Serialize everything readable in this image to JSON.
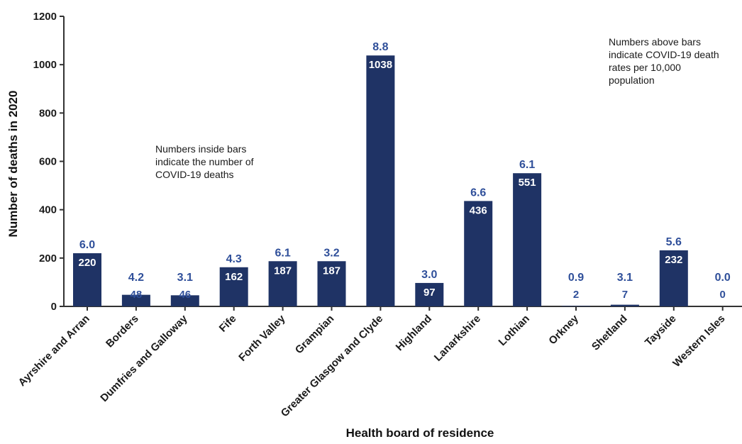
{
  "chart_data": {
    "type": "bar",
    "title": "",
    "xlabel": "Health board of residence",
    "ylabel": "Number of deaths in 2020",
    "ylim": [
      0,
      1200
    ],
    "yticks": [
      0,
      200,
      400,
      600,
      800,
      1000,
      1200
    ],
    "categories": [
      "Ayrshire and Arran",
      "Borders",
      "Dumfries and Galloway",
      "Fife",
      "Forth Valley",
      "Grampian",
      "Greater Glasgow and Clyde",
      "Highland",
      "Lanarkshire",
      "Lothian",
      "Orkney",
      "Shetland",
      "Tayside",
      "Western Isles"
    ],
    "series": [
      {
        "values": [
          220,
          48,
          46,
          162,
          187,
          187,
          1038,
          97,
          436,
          551,
          2,
          7,
          232,
          0
        ]
      }
    ],
    "rate_labels": [
      "6.0",
      "4.2",
      "3.1",
      "4.3",
      "6.1",
      "3.2",
      "8.8",
      "3.0",
      "6.6",
      "6.1",
      "0.9",
      "3.1",
      "5.6",
      "0.0"
    ],
    "annotations": {
      "inside_bars": [
        "Numbers inside bars",
        "indicate the number of",
        "COVID-19 deaths"
      ],
      "above_bars": [
        "Numbers above bars",
        "indicate COVID-19 death",
        "rates per 10,000",
        "population"
      ]
    },
    "grid": false,
    "legend": "none",
    "colors": {
      "bar": "#1f3365",
      "rate_text": "#2f4f9a",
      "inside_text": "#ffffff",
      "axis": "#333333"
    }
  }
}
